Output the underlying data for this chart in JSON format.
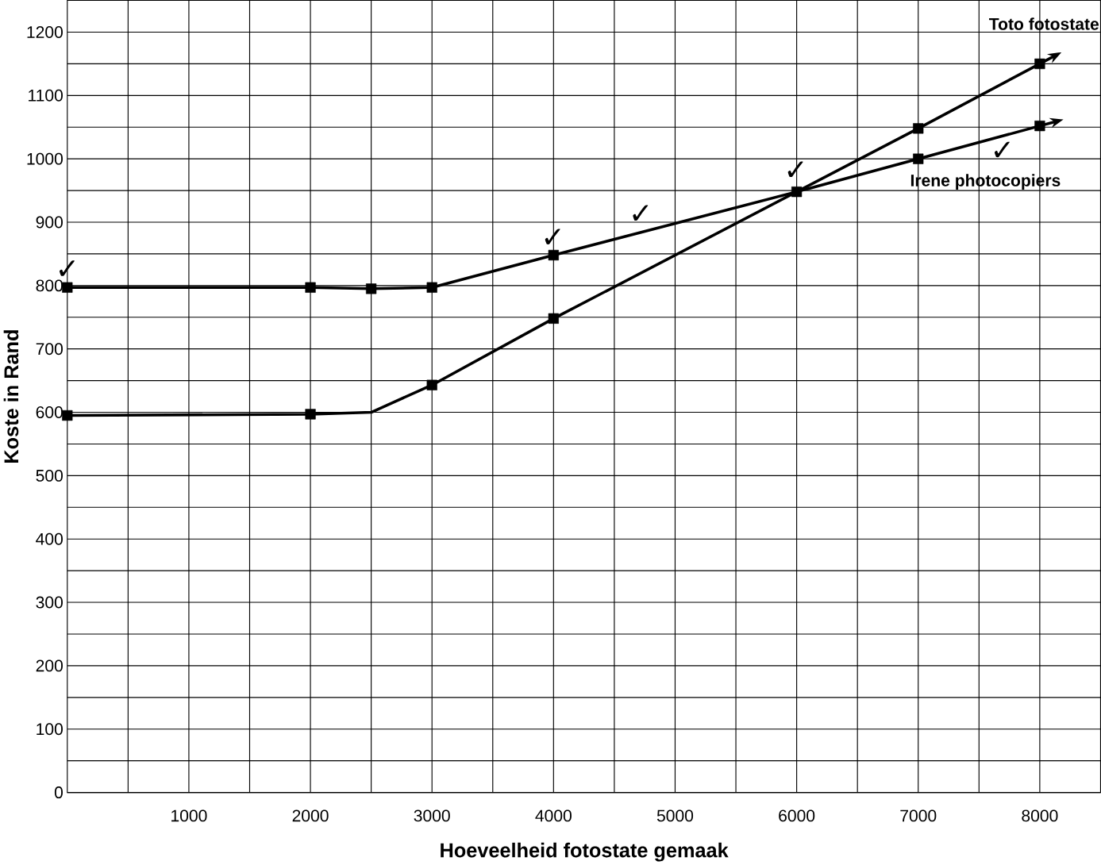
{
  "chart_data": {
    "type": "line",
    "xlabel": "Hoeveelheid fotostate gemaak",
    "ylabel": "Koste in Rand",
    "xlim": [
      0,
      8500
    ],
    "ylim": [
      0,
      1250
    ],
    "xticks": [
      {
        "value": 500,
        "label": null
      },
      1000,
      {
        "value": 1500,
        "label": null
      },
      2000,
      {
        "value": 2500,
        "label": null
      },
      3000,
      {
        "value": 3500,
        "label": null
      },
      4000,
      {
        "value": 4500,
        "label": null
      },
      5000,
      {
        "value": 5500,
        "label": null
      },
      6000,
      {
        "value": 6500,
        "label": null
      },
      7000,
      {
        "value": 7500,
        "label": null
      },
      8000
    ],
    "yticks": [
      0,
      {
        "value": 50,
        "label": null
      },
      100,
      {
        "value": 150,
        "label": null
      },
      200,
      {
        "value": 250,
        "label": null
      },
      300,
      {
        "value": 350,
        "label": null
      },
      400,
      {
        "value": 450,
        "label": null
      },
      500,
      {
        "value": 550,
        "label": null
      },
      600,
      {
        "value": 650,
        "label": null
      },
      700,
      {
        "value": 750,
        "label": null
      },
      800,
      {
        "value": 850,
        "label": null
      },
      900,
      {
        "value": 950,
        "label": null
      },
      1000,
      {
        "value": 1050,
        "label": null
      },
      1100,
      {
        "value": 1150,
        "label": null
      },
      1200
    ],
    "grid": true,
    "series": [
      {
        "name": "Toto fotostate",
        "color": "#000000",
        "marker": "none",
        "x": [
          0,
          2000,
          2500,
          3000,
          4000,
          6000,
          7000,
          8000
        ],
        "values": [
          595,
          597,
          600,
          643,
          748,
          948,
          1048,
          1150
        ]
      },
      {
        "name": "Irene photocopiers",
        "color": "#000000",
        "marker": "none",
        "x": [
          0,
          2000,
          2500,
          3000,
          4000,
          6000,
          7000,
          8000
        ],
        "values": [
          797,
          797,
          795,
          797,
          848,
          948,
          1000,
          1052
        ]
      },
      {
        "type": "scatter",
        "color": "#000000",
        "marker": "square",
        "x": [
          0,
          2000,
          3000,
          4000,
          6000,
          7000,
          8000
        ],
        "values": [
          595,
          597,
          643,
          748,
          948,
          1048,
          1150
        ]
      },
      {
        "type": "scatter",
        "color": "#000000",
        "marker": "square",
        "x": [
          0,
          2000,
          2500,
          3000,
          4000,
          6000,
          7000,
          8000
        ],
        "values": [
          797,
          797,
          795,
          797,
          848,
          null,
          1000,
          1052
        ]
      }
    ],
    "annotations": [
      "✓",
      "✓",
      "✓",
      "✓",
      "✓"
    ]
  }
}
